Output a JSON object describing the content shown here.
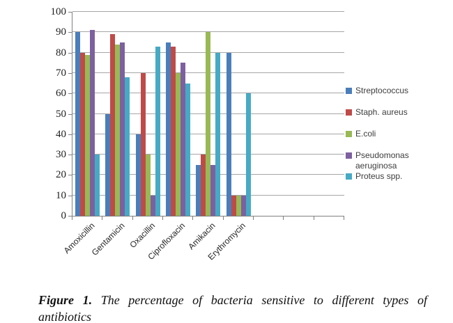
{
  "figure": {
    "caption": {
      "label": "Figure 1.",
      "line1": "The percentage of bacteria sensitive to different types of",
      "line2": "antibiotics"
    }
  },
  "chart_data": {
    "type": "bar",
    "title": "",
    "xlabel": "",
    "ylabel": "",
    "categories": [
      "Amoxicillin",
      "Gentamicin",
      "Oxacillin",
      "Ciprofloxacin",
      "Amikacin",
      "Erythromycin"
    ],
    "series": [
      {
        "name": "Streptococcus",
        "color": "#4A7EBB",
        "values": [
          90,
          50,
          40,
          85,
          25,
          80
        ]
      },
      {
        "name": "Staph. aureus",
        "color": "#BE4B48",
        "values": [
          80,
          89,
          70,
          83,
          30,
          10
        ]
      },
      {
        "name": "E.coli",
        "color": "#98B954",
        "values": [
          79,
          84,
          30,
          70,
          90,
          10
        ]
      },
      {
        "name": "Pseudomonas aeruginosa",
        "color": "#7D60A0",
        "values": [
          91,
          85,
          10,
          75,
          25,
          10
        ]
      },
      {
        "name": "Proteus spp.",
        "color": "#46AAC5",
        "values": [
          30,
          68,
          83,
          65,
          80,
          60
        ]
      }
    ],
    "ylim": [
      0,
      100
    ],
    "ytick_step": 10,
    "yticks": [
      0,
      10,
      20,
      30,
      40,
      50,
      60,
      70,
      80,
      90,
      100
    ],
    "grid": true,
    "legend_position": "right",
    "total_category_slots": 9,
    "axis_color": "#7f7f7f",
    "gridline_color": "#a6a6a6"
  }
}
